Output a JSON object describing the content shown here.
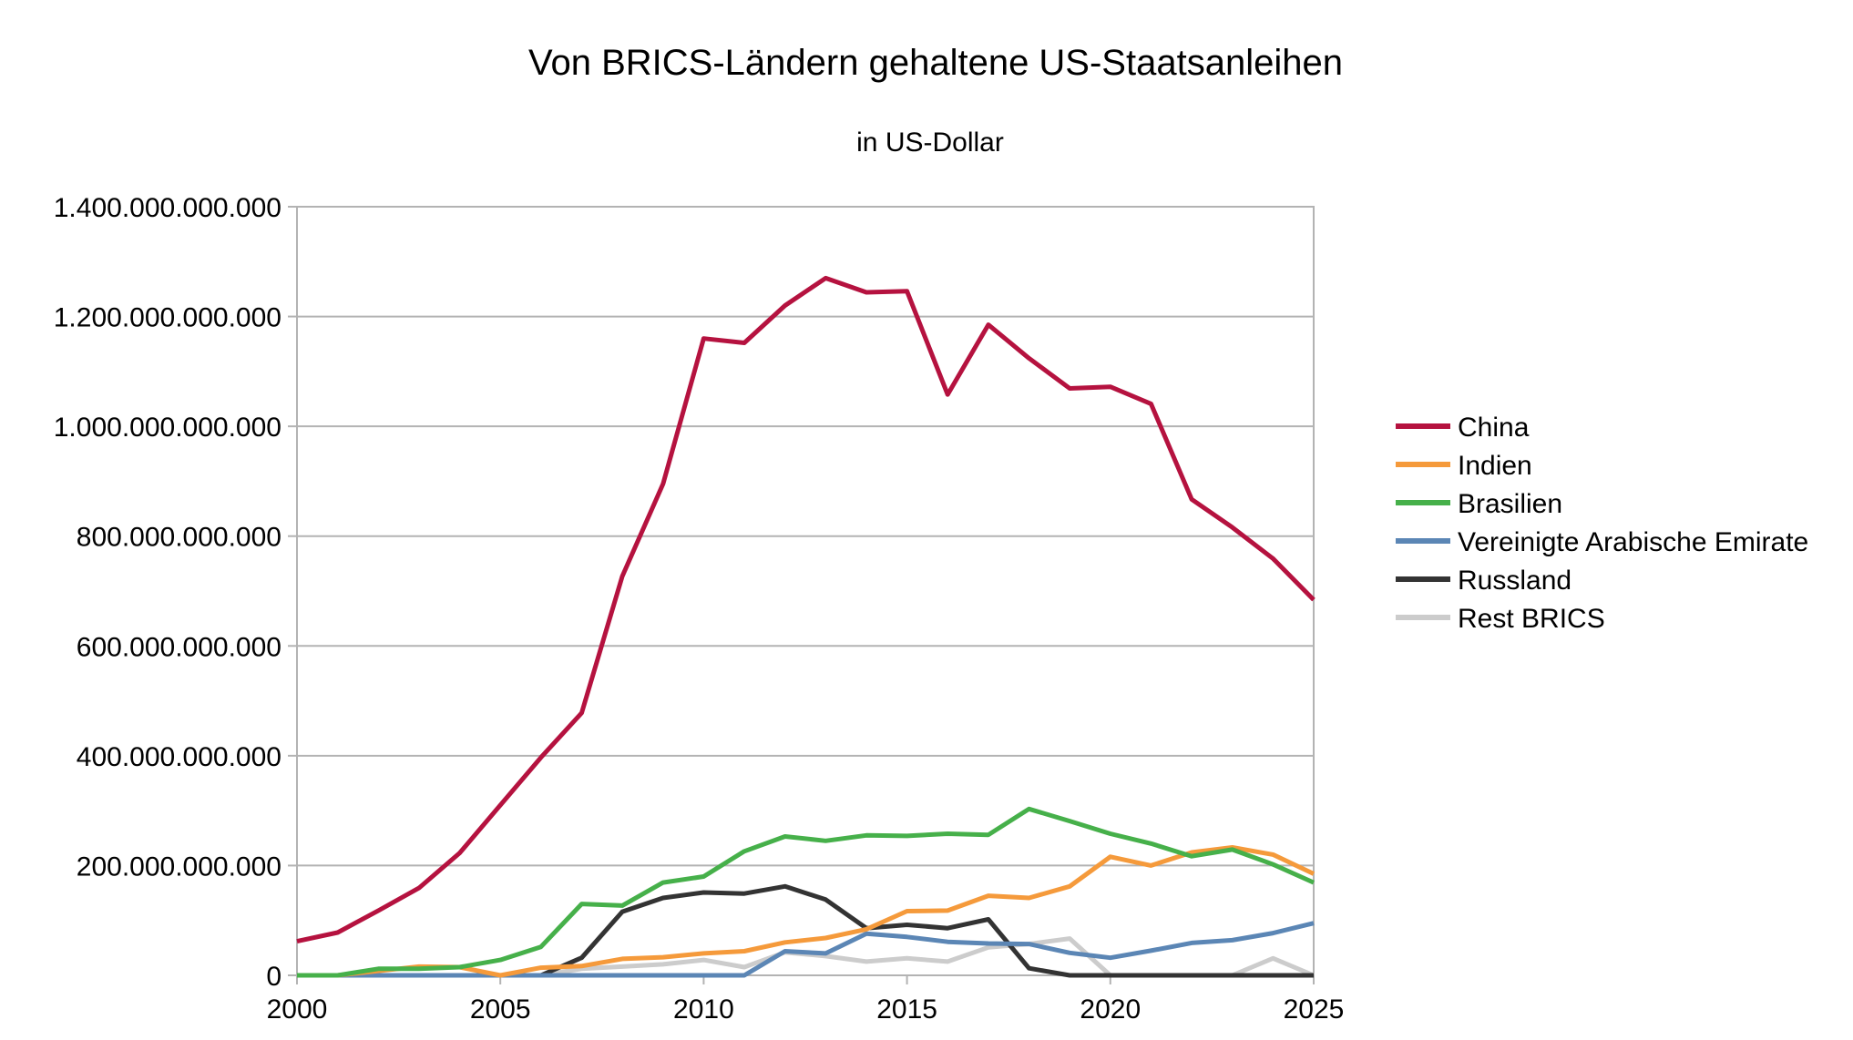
{
  "chart_data": {
    "type": "line",
    "title": "Von BRICS-Ländern gehaltene US-Staatsanleihen",
    "subtitle": "in US-Dollar",
    "xlabel": "",
    "ylabel": "",
    "xlim": [
      2000,
      2025
    ],
    "ylim": [
      0,
      1400000000000
    ],
    "x_ticks": [
      2000,
      2005,
      2010,
      2015,
      2020,
      2025
    ],
    "x_tick_labels": [
      "2000",
      "2005",
      "2010",
      "2015",
      "2020",
      "2025"
    ],
    "y_ticks": [
      0,
      200000000000,
      400000000000,
      600000000000,
      800000000000,
      1000000000000,
      1200000000000,
      1400000000000
    ],
    "y_tick_labels": [
      "0",
      "200.000.000.000",
      "400.000.000.000",
      "600.000.000.000",
      "800.000.000.000",
      "1.000.000.000.000",
      "1.200.000.000.000",
      "1.400.000.000.000"
    ],
    "grid": "horizontal",
    "legend_position": "right",
    "x": [
      2000,
      2001,
      2002,
      2003,
      2004,
      2005,
      2006,
      2007,
      2008,
      2009,
      2010,
      2011,
      2012,
      2013,
      2014,
      2015,
      2016,
      2017,
      2018,
      2019,
      2020,
      2021,
      2022,
      2023,
      2024,
      2025
    ],
    "series": [
      {
        "name": "China",
        "color": "#b5123f",
        "values": [
          62000000000,
          78000000000,
          118000000000,
          159000000000,
          223000000000,
          310000000000,
          397000000000,
          478000000000,
          727000000000,
          895000000000,
          1160000000000,
          1152000000000,
          1220000000000,
          1270000000000,
          1244000000000,
          1246000000000,
          1058000000000,
          1185000000000,
          1124000000000,
          1069000000000,
          1072000000000,
          1041000000000,
          867000000000,
          816000000000,
          759000000000,
          684000000000
        ]
      },
      {
        "name": "Indien",
        "color": "#f59a3b",
        "values": [
          0,
          0,
          8000000000,
          16000000000,
          15000000000,
          0,
          14000000000,
          17000000000,
          30000000000,
          33000000000,
          40000000000,
          44000000000,
          60000000000,
          68000000000,
          84000000000,
          117000000000,
          118000000000,
          145000000000,
          141000000000,
          162000000000,
          216000000000,
          200000000000,
          224000000000,
          233000000000,
          220000000000,
          185000000000
        ]
      },
      {
        "name": "Brasilien",
        "color": "#46b04a",
        "values": [
          0,
          0,
          12000000000,
          12000000000,
          15000000000,
          28000000000,
          52000000000,
          130000000000,
          127000000000,
          169000000000,
          180000000000,
          226000000000,
          253000000000,
          245000000000,
          255000000000,
          254000000000,
          258000000000,
          256000000000,
          303000000000,
          281000000000,
          258000000000,
          240000000000,
          217000000000,
          229000000000,
          202000000000,
          169000000000
        ]
      },
      {
        "name": "Vereinigte Arabische Emirate",
        "color": "#5b86b5",
        "values": [
          0,
          0,
          0,
          0,
          0,
          0,
          0,
          0,
          0,
          0,
          0,
          0,
          44000000000,
          40000000000,
          76000000000,
          70000000000,
          61000000000,
          58000000000,
          57000000000,
          41000000000,
          32000000000,
          45000000000,
          59000000000,
          64000000000,
          77000000000,
          95000000000
        ]
      },
      {
        "name": "Russland",
        "color": "#333333",
        "values": [
          0,
          0,
          0,
          0,
          0,
          0,
          0,
          32000000000,
          116000000000,
          141000000000,
          151000000000,
          149000000000,
          162000000000,
          138000000000,
          86000000000,
          92000000000,
          86000000000,
          102000000000,
          13000000000,
          0,
          0,
          0,
          0,
          0,
          0,
          0
        ]
      },
      {
        "name": "Rest BRICS",
        "color": "#cccccc",
        "values": [
          0,
          0,
          0,
          0,
          0,
          0,
          0,
          12000000000,
          16000000000,
          20000000000,
          28000000000,
          15000000000,
          42000000000,
          35000000000,
          25000000000,
          31000000000,
          25000000000,
          51000000000,
          57000000000,
          67000000000,
          0,
          0,
          0,
          0,
          31000000000,
          0
        ]
      }
    ]
  }
}
